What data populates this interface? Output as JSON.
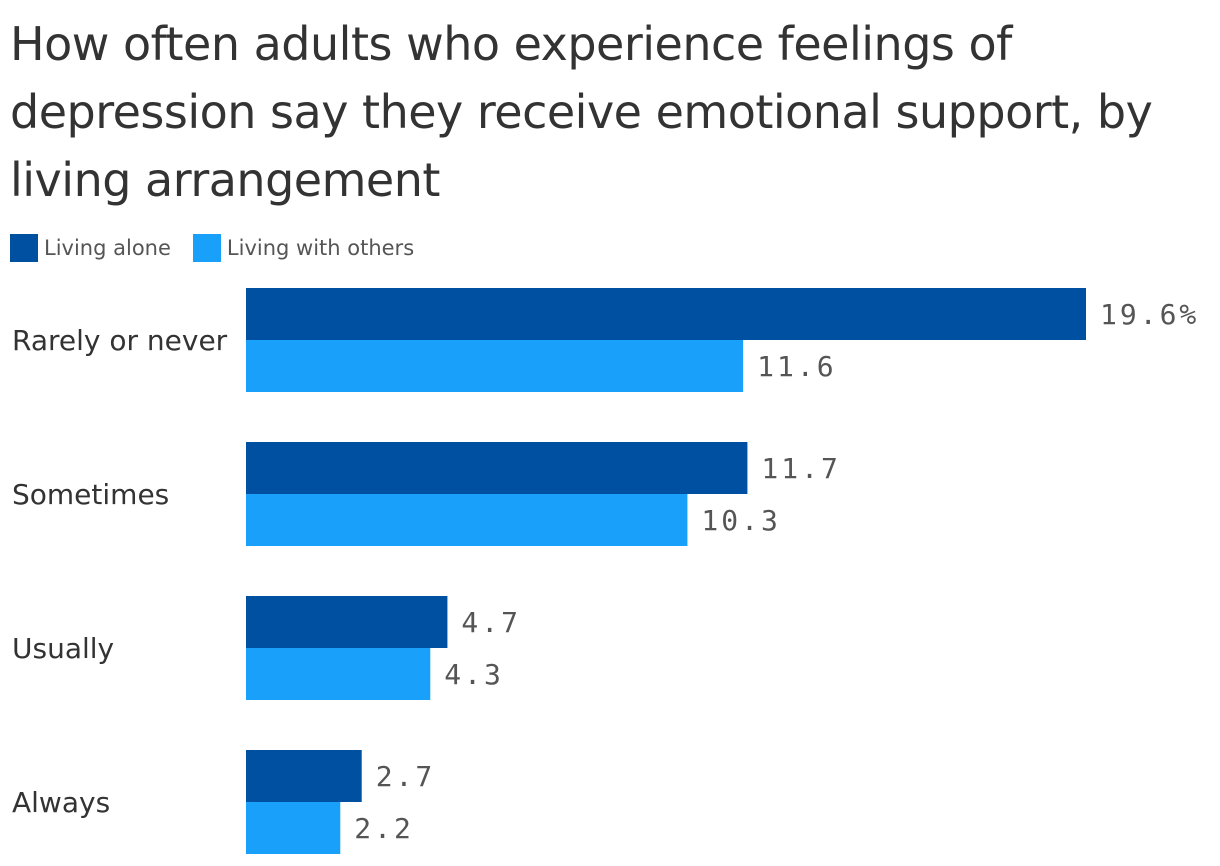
{
  "chart_data": {
    "type": "bar",
    "orientation": "horizontal",
    "title": "How often adults who experience feelings of depression say they receive emotional support, by living arrangement",
    "categories": [
      "Rarely or never",
      "Sometimes",
      "Usually",
      "Always"
    ],
    "series": [
      {
        "name": "Living alone",
        "color": "#0050a2",
        "values": [
          19.6,
          11.7,
          4.7,
          2.7
        ],
        "labels": [
          "19.6%",
          "11.7",
          "4.7",
          "2.7"
        ]
      },
      {
        "name": "Living with others",
        "color": "#18a0fb",
        "values": [
          11.6,
          10.3,
          4.3,
          2.2
        ],
        "labels": [
          "11.6",
          "10.3",
          "4.3",
          "2.2"
        ]
      }
    ],
    "xlim": [
      0,
      19.6
    ],
    "grid": false,
    "legend_position": "top-left",
    "unit": "%"
  }
}
